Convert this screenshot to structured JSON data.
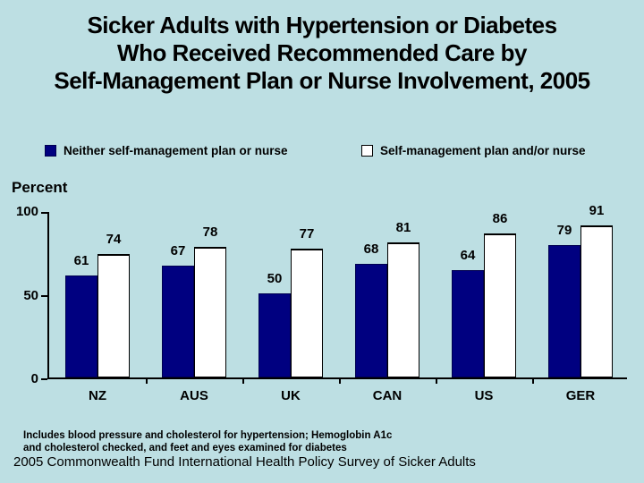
{
  "title": {
    "lines": [
      "Sicker Adults with Hypertension or Diabetes",
      "Who Received Recommended Care by",
      "Self-Management Plan or Nurse Involvement, 2005"
    ]
  },
  "footnote": {
    "lines": [
      "Includes blood pressure and cholesterol for hypertension; Hemoglobin A1c",
      "and cholesterol checked, and feet and eyes examined for diabetes"
    ]
  },
  "source": {
    "text": "2005 Commonwealth Fund International Health Policy Survey of Sicker Adults"
  },
  "colors": {
    "background": "#BDDFE3",
    "bar_neither": "#000080",
    "bar_plan": "#FFFFFF",
    "axis": "#000000",
    "text": "#000000"
  },
  "chart_data": {
    "type": "bar",
    "title": "Sicker Adults with Hypertension or Diabetes Who Received Recommended Care by Self-Management Plan or Nurse Involvement, 2005",
    "categories": [
      "NZ",
      "AUS",
      "UK",
      "CAN",
      "US",
      "GER"
    ],
    "series": [
      {
        "name": "Neither self-management plan or nurse",
        "color": "#000080",
        "values": [
          61,
          67,
          50,
          68,
          64,
          79
        ]
      },
      {
        "name": "Self-management plan and/or nurse",
        "color": "#FFFFFF",
        "values": [
          74,
          78,
          77,
          81,
          86,
          91
        ]
      }
    ],
    "xlabel": "",
    "ylabel": "Percent",
    "ylim": [
      0,
      100
    ],
    "yticks": [
      0,
      50,
      100
    ],
    "grid": false,
    "legend_position": "top",
    "value_labels": true
  }
}
